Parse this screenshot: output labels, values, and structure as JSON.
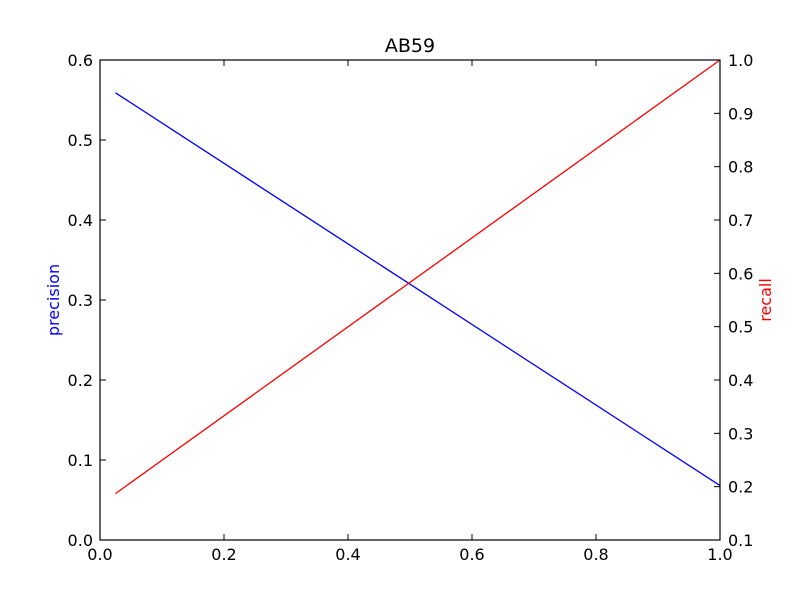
{
  "chart_data": {
    "type": "line",
    "title": "AB59",
    "xlabel": "",
    "xlim": [
      0.0,
      1.0
    ],
    "x_ticks": [
      "0.0",
      "0.2",
      "0.4",
      "0.6",
      "0.8",
      "1.0"
    ],
    "left_axis": {
      "label": "precision",
      "color": "#0000ff",
      "ylim": [
        0.0,
        0.6
      ],
      "ticks": [
        "0.0",
        "0.1",
        "0.2",
        "0.3",
        "0.4",
        "0.5",
        "0.6"
      ]
    },
    "right_axis": {
      "label": "recall",
      "color": "#ff0000",
      "ylim": [
        0.1,
        1.0
      ],
      "ticks": [
        "0.1",
        "0.2",
        "0.3",
        "0.4",
        "0.5",
        "0.6",
        "0.7",
        "0.8",
        "0.9",
        "1.0"
      ]
    },
    "series": [
      {
        "axis": "left",
        "color": "#0000ff",
        "x": [
          0.025,
          1.0
        ],
        "y": [
          0.559,
          0.068
        ]
      },
      {
        "axis": "right",
        "color": "#ff0000",
        "x": [
          0.025,
          1.0
        ],
        "y": [
          0.187,
          1.0
        ]
      }
    ],
    "grid": false
  }
}
